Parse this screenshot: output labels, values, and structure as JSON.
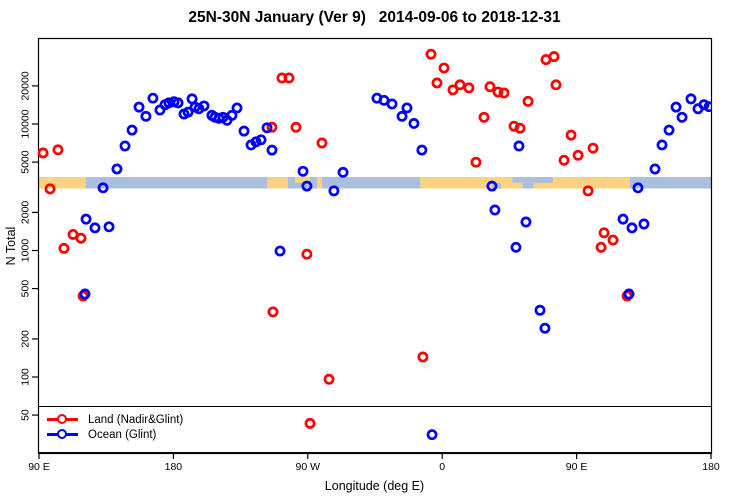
{
  "chart_data": {
    "type": "scatter",
    "title": "25N-30N January (Ver 9)   2014-09-06 to 2018-12-31",
    "xlabel": "Longitude (deg E)",
    "ylabel": "N Total",
    "x_axis": {
      "note": "longitude axis wraps eastward from 90E to 180E (spans 450 deg)",
      "range_deg": [
        90,
        540
      ],
      "ticks": [
        {
          "pos": 90,
          "label": "90 E"
        },
        {
          "pos": 180,
          "label": "180"
        },
        {
          "pos": 270,
          "label": "90 W"
        },
        {
          "pos": 360,
          "label": "0"
        },
        {
          "pos": 450,
          "label": "90 E"
        },
        {
          "pos": 540,
          "label": "180"
        }
      ]
    },
    "y_axis": {
      "scale": "log",
      "ticks": [
        50,
        100,
        200,
        500,
        1000,
        2000,
        5000,
        10000,
        20000
      ],
      "range": [
        45,
        48000
      ]
    },
    "legend": [
      {
        "label": "Land (Nadir&Glint)",
        "color": "#FF0000"
      },
      {
        "label": "Ocean (Glint)",
        "color": "#0000FF"
      }
    ],
    "map_strip": {
      "land_color": "#FAD382",
      "ocean_color": "#A9BFDD",
      "n_range": [
        3090,
        3810
      ],
      "land_segments": [
        {
          "from": 90,
          "to": 121.5,
          "part": "full"
        },
        {
          "from": 242.7,
          "to": 256.7,
          "part": "full"
        },
        {
          "from": 261.4,
          "to": 271.5,
          "part": "top"
        },
        {
          "from": 276.2,
          "to": 279.5,
          "part": "full"
        },
        {
          "from": 345.1,
          "to": 485.8,
          "part": "full"
        }
      ],
      "ocean_patches": [
        {
          "from": 393.5,
          "to": 399.5,
          "part": "bottom"
        },
        {
          "from": 407,
          "to": 434,
          "part": "top"
        },
        {
          "from": 414,
          "to": 421,
          "part": "bottom"
        }
      ]
    },
    "series": [
      {
        "name": "Land (Nadir&Glint)",
        "color": "#FF0000",
        "points": [
          [
            92.7,
            5900
          ],
          [
            102.7,
            6250
          ],
          [
            97.4,
            3070
          ],
          [
            106.7,
            1040
          ],
          [
            112.8,
            1340
          ],
          [
            118.1,
            1250
          ],
          [
            119.5,
            437
          ],
          [
            246.0,
            9430
          ],
          [
            252.7,
            23100
          ],
          [
            257.4,
            23100
          ],
          [
            262.1,
            9430
          ],
          [
            279.5,
            7080
          ],
          [
            246.7,
            327
          ],
          [
            269.4,
            935
          ],
          [
            271.5,
            43
          ],
          [
            284.2,
            96
          ],
          [
            347.1,
            144
          ],
          [
            352.5,
            35600
          ],
          [
            356.5,
            21100
          ],
          [
            361.2,
            27700
          ],
          [
            367.2,
            18600
          ],
          [
            371.9,
            20400
          ],
          [
            377.9,
            19300
          ],
          [
            382.6,
            4990
          ],
          [
            388.0,
            11300
          ],
          [
            392.0,
            19700
          ],
          [
            397.4,
            17900
          ],
          [
            401.4,
            17600
          ],
          [
            408.1,
            9600
          ],
          [
            412.1,
            9260
          ],
          [
            417.5,
            15100
          ],
          [
            429.5,
            32300
          ],
          [
            434.9,
            34100
          ],
          [
            436.2,
            20400
          ],
          [
            441.6,
            5170
          ],
          [
            446.3,
            8170
          ],
          [
            451.0,
            5660
          ],
          [
            461.0,
            6440
          ],
          [
            457.7,
            2960
          ],
          [
            468.4,
            1380
          ],
          [
            474.4,
            1210
          ],
          [
            466.4,
            1060
          ],
          [
            483.8,
            437
          ]
        ]
      },
      {
        "name": "Ocean (Glint)",
        "color": "#0000FF",
        "points": [
          [
            120.8,
            453
          ],
          [
            121.5,
            1770
          ],
          [
            127.5,
            1510
          ],
          [
            136.9,
            1540
          ],
          [
            132.9,
            3130
          ],
          [
            142.2,
            4410
          ],
          [
            147.6,
            6700
          ],
          [
            152.3,
            8950
          ],
          [
            157.0,
            13600
          ],
          [
            161.6,
            11500
          ],
          [
            166.3,
            16000
          ],
          [
            171.0,
            12900
          ],
          [
            174.4,
            14200
          ],
          [
            177.0,
            14700
          ],
          [
            180.4,
            15000
          ],
          [
            183.1,
            14700
          ],
          [
            187.1,
            12000
          ],
          [
            189.8,
            12400
          ],
          [
            192.5,
            15800
          ],
          [
            194.5,
            13600
          ],
          [
            197.1,
            13200
          ],
          [
            200.5,
            13900
          ],
          [
            205.8,
            11700
          ],
          [
            207.9,
            11300
          ],
          [
            210.5,
            11100
          ],
          [
            213.2,
            11300
          ],
          [
            215.9,
            10700
          ],
          [
            219.2,
            11700
          ],
          [
            222.6,
            13400
          ],
          [
            227.3,
            8790
          ],
          [
            232.0,
            6830
          ],
          [
            235.3,
            7230
          ],
          [
            238.7,
            7500
          ],
          [
            242.7,
            9330
          ],
          [
            246.0,
            6220
          ],
          [
            251.4,
            990
          ],
          [
            266.8,
            4230
          ],
          [
            269.4,
            3230
          ],
          [
            287.5,
            2960
          ],
          [
            293.6,
            4150
          ],
          [
            316.3,
            16000
          ],
          [
            321.0,
            15400
          ],
          [
            326.4,
            14400
          ],
          [
            333.1,
            11500
          ],
          [
            336.4,
            13400
          ],
          [
            341.1,
            10100
          ],
          [
            346.4,
            6220
          ],
          [
            393.3,
            3230
          ],
          [
            395.3,
            2090
          ],
          [
            411.4,
            6700
          ],
          [
            416.1,
            1680
          ],
          [
            409.4,
            1060
          ],
          [
            425.5,
            337
          ],
          [
            428.8,
            243
          ],
          [
            353.2,
            35
          ],
          [
            485.1,
            453
          ],
          [
            481.1,
            1770
          ],
          [
            487.1,
            1510
          ],
          [
            495.1,
            1620
          ],
          [
            491.1,
            3130
          ],
          [
            502.5,
            4410
          ],
          [
            507.2,
            6830
          ],
          [
            511.9,
            8950
          ],
          [
            516.6,
            13600
          ],
          [
            520.6,
            11300
          ],
          [
            526.6,
            15800
          ],
          [
            531.3,
            13200
          ],
          [
            535.3,
            14200
          ],
          [
            538.7,
            13700
          ]
        ]
      }
    ]
  }
}
